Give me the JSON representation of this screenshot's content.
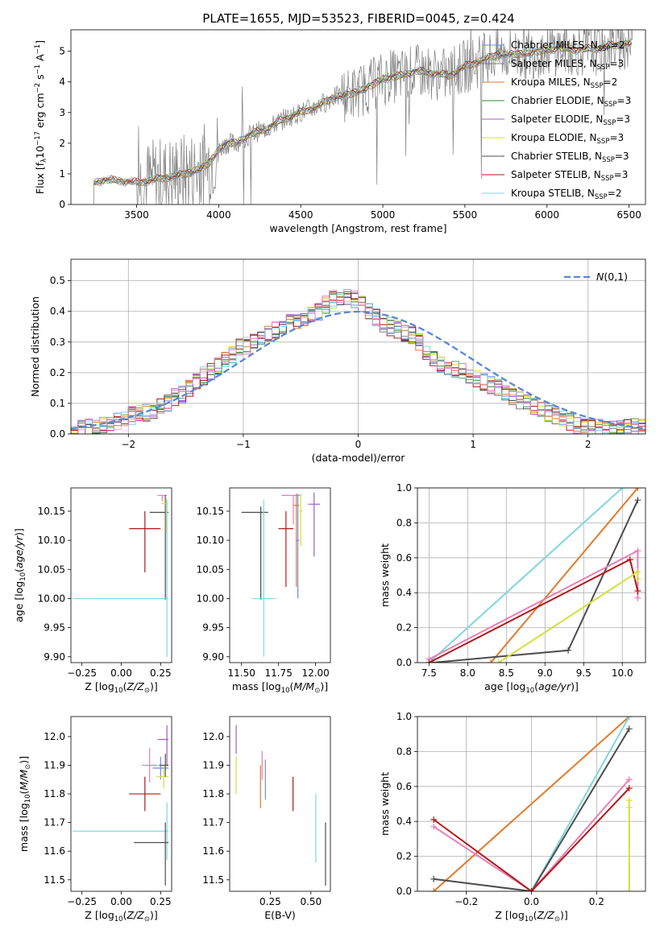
{
  "figure_title": "PLATE=1655, MJD=53523, FIBERID=0045, z=0.424",
  "colors": {
    "chabrier_miles": "#6b8ee8",
    "salpeter_miles": "#7a7a7a",
    "kroupa_miles": "#e07b2a",
    "chabrier_elodie": "#2e8b2e",
    "salpeter_elodie": "#a05cc8",
    "kroupa_elodie": "#d6df3a",
    "chabrier_stelib": "#4d4d4d",
    "salpeter_stelib": "#b01a1a",
    "kroupa_stelib": "#7fd6e0",
    "pink": "#e87fb4",
    "gaussian": "#5b87d6",
    "data": "#7f7f7f"
  },
  "chart_data": [
    {
      "id": "spectrum",
      "type": "line",
      "title": "PLATE=1655, MJD=53523, FIBERID=0045, z=0.424",
      "xlabel": "wavelength [Angstrom, rest frame]",
      "ylabel": "Flux [f_λ 10^-17 erg cm^-2 s^-1 A^-1]",
      "xlim": [
        3100,
        6600
      ],
      "ylim": [
        0,
        5.7
      ],
      "xticks": [
        3500,
        4000,
        4500,
        5000,
        5500,
        6000,
        6500
      ],
      "yticks": [
        0,
        1,
        2,
        3,
        4,
        5
      ],
      "grid": false,
      "legend_position": "right",
      "continuum": {
        "x": [
          3240,
          3300,
          3400,
          3500,
          3600,
          3700,
          3800,
          3900,
          3950,
          4000,
          4050,
          4100,
          4200,
          4300,
          4400,
          4500,
          4600,
          4700,
          4800,
          4900,
          5000,
          5100,
          5200,
          5300,
          5400,
          5500,
          5600,
          5700,
          5800,
          5900,
          6000,
          6100,
          6200,
          6300,
          6400,
          6500
        ],
        "y": [
          0.72,
          0.8,
          0.78,
          0.72,
          0.8,
          0.9,
          1.0,
          1.2,
          1.4,
          1.8,
          2.0,
          2.0,
          2.3,
          2.5,
          2.8,
          3.0,
          3.2,
          3.5,
          3.6,
          3.8,
          4.1,
          4.2,
          4.35,
          4.3,
          4.2,
          4.5,
          4.7,
          4.9,
          4.9,
          4.95,
          5.05,
          5.1,
          5.05,
          5.1,
          5.2,
          5.25
        ]
      },
      "series": [
        {
          "name": "Chabrier MILES",
          "nssp": "2",
          "color": "#6b8ee8"
        },
        {
          "name": "Salpeter MILES",
          "nssp": "3",
          "color": "#7a7a7a"
        },
        {
          "name": "Kroupa MILES",
          "nssp": "2",
          "color": "#e07b2a"
        },
        {
          "name": "Chabrier ELODIE",
          "nssp": "3",
          "color": "#2e8b2e"
        },
        {
          "name": "Salpeter ELODIE",
          "nssp": "3",
          "color": "#a05cc8"
        },
        {
          "name": "Kroupa ELODIE",
          "nssp": "3",
          "color": "#d6df3a"
        },
        {
          "name": "Chabrier STELIB",
          "nssp": "3",
          "color": "#4d4d4d"
        },
        {
          "name": "Salpeter STELIB",
          "nssp": "3",
          "color": "#b01a1a"
        },
        {
          "name": "Kroupa STELIB",
          "nssp": "2",
          "color": "#7fd6e0"
        }
      ]
    },
    {
      "id": "residuals",
      "type": "line",
      "xlabel": "(data-model)/error",
      "ylabel": "Normed distribution",
      "xlim": [
        -2.5,
        2.5
      ],
      "ylim": [
        0,
        0.57
      ],
      "xticks": [
        -2,
        -1,
        0,
        1,
        2
      ],
      "yticks": [
        0.0,
        0.1,
        0.2,
        0.3,
        0.4,
        0.5
      ],
      "grid": true,
      "legend_position": "top-right",
      "legend": "N(0,1)",
      "bin_width": 0.1,
      "bin_start": -2.5,
      "histogram_envelope": [
        0.01,
        0.015,
        0.02,
        0.025,
        0.03,
        0.035,
        0.04,
        0.05,
        0.06,
        0.065,
        0.07,
        0.08,
        0.09,
        0.1,
        0.12,
        0.13,
        0.15,
        0.17,
        0.19,
        0.2,
        0.22,
        0.24,
        0.26,
        0.28,
        0.29,
        0.3,
        0.31,
        0.33,
        0.34,
        0.35,
        0.36,
        0.37,
        0.38,
        0.39,
        0.4,
        0.42,
        0.44,
        0.45,
        0.45,
        0.44,
        0.42,
        0.4,
        0.38,
        0.36,
        0.35,
        0.34,
        0.33,
        0.32,
        0.3,
        0.27,
        0.25,
        0.23,
        0.22,
        0.21,
        0.2,
        0.19,
        0.18,
        0.17,
        0.16,
        0.15,
        0.14,
        0.12,
        0.11,
        0.1,
        0.09,
        0.08,
        0.07,
        0.06,
        0.05,
        0.04,
        0.03,
        0.03,
        0.02,
        0.02,
        0.02,
        0.02,
        0.02,
        0.02,
        0.02,
        0.02
      ]
    },
    {
      "id": "age_vs_Z",
      "type": "scatter",
      "xlabel": "Z [log10(Z/Z⊙)]",
      "ylabel": "age [log10(age/yr)]",
      "xlim": [
        -0.32,
        0.32
      ],
      "ylim": [
        9.89,
        10.19
      ],
      "xticks": [
        -0.25,
        0.0,
        0.25
      ],
      "yticks": [
        9.9,
        9.95,
        10.0,
        10.05,
        10.1,
        10.15
      ],
      "grid": false,
      "points": [
        {
          "x": 0.26,
          "y": 10.177,
          "xe": [
            0.03,
            0.03
          ],
          "ye": [
            0.01,
            0.0
          ],
          "c": "#e87fb4"
        },
        {
          "x": 0.15,
          "y": 10.12,
          "xe": [
            0.1,
            0.1
          ],
          "ye": [
            0.075,
            0.03
          ],
          "c": "#b01a1a"
        },
        {
          "x": 0.28,
          "y": 10.148,
          "xe": [
            0.1,
            0.02
          ],
          "ye": [
            0.15,
            0.03
          ],
          "c": "#4d4d4d"
        },
        {
          "x": 0.285,
          "y": 10.163,
          "xe": [
            0.03,
            0.01
          ],
          "ye": [
            0.05,
            0.01
          ],
          "c": "#d6df3a"
        },
        {
          "x": 0.29,
          "y": 10.0,
          "xe": [
            0.6,
            0.01
          ],
          "ye": [
            0.1,
            0.17
          ],
          "c": "#7fd6e0"
        }
      ]
    },
    {
      "id": "age_vs_mass",
      "type": "scatter",
      "xlabel": "mass [log10(M/M⊙)]",
      "ylabel": "",
      "xlim": [
        11.42,
        12.1
      ],
      "ylim": [
        9.89,
        10.19
      ],
      "xticks": [
        11.5,
        11.75,
        12.0
      ],
      "yticks": [
        9.9,
        9.95,
        10.0,
        10.05,
        10.1,
        10.15
      ],
      "grid": false,
      "points": [
        {
          "x": 11.8,
          "y": 10.12,
          "xe": [
            0.05,
            0.05
          ],
          "ye": [
            0.1,
            0.03
          ],
          "c": "#b01a1a"
        },
        {
          "x": 11.63,
          "y": 10.148,
          "xe": [
            0.13,
            0.05
          ],
          "ye": [
            0.15,
            0.01
          ],
          "c": "#4d4d4d"
        },
        {
          "x": 11.65,
          "y": 10.0,
          "xe": [
            0.08,
            0.08
          ],
          "ye": [
            0.1,
            0.17
          ],
          "c": "#7fd6e0"
        },
        {
          "x": 11.85,
          "y": 10.177,
          "xe": [
            0.08,
            0.05
          ],
          "ye": [
            0.05,
            0.0
          ],
          "c": "#e87fb4"
        },
        {
          "x": 11.87,
          "y": 10.16,
          "xe": [
            0.02,
            0.02
          ],
          "ye": [
            0.14,
            0.02
          ],
          "c": "#e07b2a"
        },
        {
          "x": 11.88,
          "y": 10.1,
          "xe": [
            0.01,
            0.01
          ],
          "ye": [
            0.1,
            0.08
          ],
          "c": "#6b8ee8"
        },
        {
          "x": 11.9,
          "y": 10.15,
          "xe": [
            0.01,
            0.01
          ],
          "ye": [
            0.06,
            0.03
          ],
          "c": "#d6df3a"
        },
        {
          "x": 11.99,
          "y": 10.162,
          "xe": [
            0.04,
            0.04
          ],
          "ye": [
            0.09,
            0.02
          ],
          "c": "#a05cc8"
        }
      ]
    },
    {
      "id": "weight_vs_age",
      "type": "line",
      "xlabel": "age [log10(age/yr)]",
      "ylabel": "mass weight",
      "xlim": [
        7.35,
        10.3
      ],
      "ylim": [
        0.0,
        1.0
      ],
      "xticks": [
        7.5,
        8.0,
        8.5,
        9.0,
        9.5,
        10.0
      ],
      "yticks": [
        0.0,
        0.2,
        0.4,
        0.6,
        0.8,
        1.0
      ],
      "grid": true,
      "series": [
        {
          "x": [
            7.5,
            10.0
          ],
          "y": [
            0.0,
            1.0
          ],
          "c": "#7fd6e0"
        },
        {
          "x": [
            8.3,
            10.2
          ],
          "y": [
            0.0,
            1.0
          ],
          "c": "#e07b2a"
        },
        {
          "x": [
            7.55,
            9.3,
            10.2
          ],
          "y": [
            0.0,
            0.07,
            0.93
          ],
          "c": "#4d4d4d"
        },
        {
          "x": [
            7.5,
            10.2,
            10.2
          ],
          "y": [
            0.02,
            0.64,
            0.37
          ],
          "c": "#e87fb4"
        },
        {
          "x": [
            7.5,
            10.1,
            10.2
          ],
          "y": [
            0.0,
            0.59,
            0.41
          ],
          "c": "#b01a1a"
        },
        {
          "x": [
            8.4,
            10.2,
            10.2
          ],
          "y": [
            0.0,
            0.52,
            0.48
          ],
          "c": "#d6df3a"
        }
      ]
    },
    {
      "id": "mass_vs_Z",
      "type": "scatter",
      "xlabel": "Z [log10(Z/Z⊙)]",
      "ylabel": "mass [log10(M/M⊙)]",
      "xlim": [
        -0.32,
        0.32
      ],
      "ylim": [
        11.46,
        12.07
      ],
      "xticks": [
        -0.25,
        0.0,
        0.25
      ],
      "yticks": [
        11.5,
        11.6,
        11.7,
        11.8,
        11.9,
        12.0
      ],
      "grid": false,
      "points": [
        {
          "x": 0.27,
          "y": 11.99,
          "xe": [
            0.04,
            0.03
          ],
          "ye": [
            0.0,
            0.0
          ],
          "c": "#a05cc8"
        },
        {
          "x": 0.29,
          "y": 11.98,
          "xe": [
            0.0,
            0.0
          ],
          "ye": [
            0.08,
            0.06
          ],
          "c": "#a05cc8"
        },
        {
          "x": 0.18,
          "y": 11.9,
          "xe": [
            0.05,
            0.05
          ],
          "ye": [
            0.06,
            0.06
          ],
          "c": "#e87fb4"
        },
        {
          "x": 0.25,
          "y": 11.89,
          "xe": [
            0.05,
            0.05
          ],
          "ye": [
            0.04,
            0.04
          ],
          "c": "#6b8ee8"
        },
        {
          "x": 0.27,
          "y": 11.86,
          "xe": [
            0.05,
            0.03
          ],
          "ye": [
            0.04,
            0.04
          ],
          "c": "#d6df3a"
        },
        {
          "x": 0.28,
          "y": 11.9,
          "xe": [
            0.04,
            0.02
          ],
          "ye": [
            0.04,
            0.04
          ],
          "c": "#4d4d4d"
        },
        {
          "x": 0.15,
          "y": 11.8,
          "xe": [
            0.1,
            0.1
          ],
          "ye": [
            0.06,
            0.06
          ],
          "c": "#b01a1a"
        },
        {
          "x": 0.29,
          "y": 11.67,
          "xe": [
            0.6,
            0.01
          ],
          "ye": [
            0.1,
            0.1
          ],
          "c": "#7fd6e0"
        },
        {
          "x": 0.28,
          "y": 11.63,
          "xe": [
            0.2,
            0.02
          ],
          "ye": [
            0.15,
            0.07
          ],
          "c": "#4d4d4d"
        }
      ]
    },
    {
      "id": "mass_vs_ebv",
      "type": "scatter",
      "xlabel": "E(B-V)",
      "ylabel": "",
      "xlim": [
        0.0,
        0.62
      ],
      "ylim": [
        11.46,
        12.07
      ],
      "xticks": [
        0.25,
        0.5
      ],
      "yticks": [
        11.5,
        11.6,
        11.7,
        11.8,
        11.9,
        12.0
      ],
      "grid": false,
      "points": [
        {
          "x": 0.04,
          "y": 11.99,
          "xe": [
            0,
            0
          ],
          "ye": [
            0.05,
            0.05
          ],
          "c": "#a05cc8"
        },
        {
          "x": 0.04,
          "y": 11.87,
          "xe": [
            0,
            0
          ],
          "ye": [
            0.07,
            0.06
          ],
          "c": "#d6df3a"
        },
        {
          "x": 0.19,
          "y": 11.83,
          "xe": [
            0,
            0
          ],
          "ye": [
            0.08,
            0.07
          ],
          "c": "#e07b2a"
        },
        {
          "x": 0.2,
          "y": 11.9,
          "xe": [
            0,
            0
          ],
          "ye": [
            0.05,
            0.05
          ],
          "c": "#e87fb4"
        },
        {
          "x": 0.22,
          "y": 11.85,
          "xe": [
            0,
            0
          ],
          "ye": [
            0.07,
            0.07
          ],
          "c": "#6b8ee8"
        },
        {
          "x": 0.39,
          "y": 11.8,
          "xe": [
            0,
            0
          ],
          "ye": [
            0.06,
            0.06
          ],
          "c": "#b01a1a"
        },
        {
          "x": 0.53,
          "y": 11.68,
          "xe": [
            0,
            0
          ],
          "ye": [
            0.12,
            0.12
          ],
          "c": "#7fd6e0"
        },
        {
          "x": 0.59,
          "y": 11.58,
          "xe": [
            0,
            0
          ],
          "ye": [
            0.1,
            0.12
          ],
          "c": "#4d4d4d"
        }
      ]
    },
    {
      "id": "weight_vs_Z",
      "type": "line",
      "xlabel": "Z [log10(Z/Z⊙)]",
      "ylabel": "mass weight",
      "xlim": [
        -0.35,
        0.35
      ],
      "ylim": [
        0.0,
        1.0
      ],
      "xticks": [
        -0.2,
        0.0,
        0.2
      ],
      "yticks": [
        0.0,
        0.2,
        0.4,
        0.6,
        0.8,
        1.0
      ],
      "grid": true,
      "series": [
        {
          "x": [
            -0.3,
            0.3
          ],
          "y": [
            0.0,
            1.0
          ],
          "c": "#e07b2a"
        },
        {
          "x": [
            0.0,
            0.3
          ],
          "y": [
            0.0,
            1.0
          ],
          "c": "#7fd6e0"
        },
        {
          "x": [
            -0.3,
            0.0,
            0.3
          ],
          "y": [
            0.07,
            0.0,
            0.93
          ],
          "c": "#4d4d4d"
        },
        {
          "x": [
            -0.3,
            0.0,
            0.3
          ],
          "y": [
            0.37,
            0.0,
            0.64
          ],
          "c": "#e87fb4"
        },
        {
          "x": [
            -0.3,
            0.0,
            0.3
          ],
          "y": [
            0.41,
            0.0,
            0.59
          ],
          "c": "#b01a1a"
        },
        {
          "x": [
            0.3,
            0.3,
            0.3
          ],
          "y": [
            0.0,
            0.52,
            0.48
          ],
          "c": "#d6df3a"
        }
      ]
    }
  ]
}
